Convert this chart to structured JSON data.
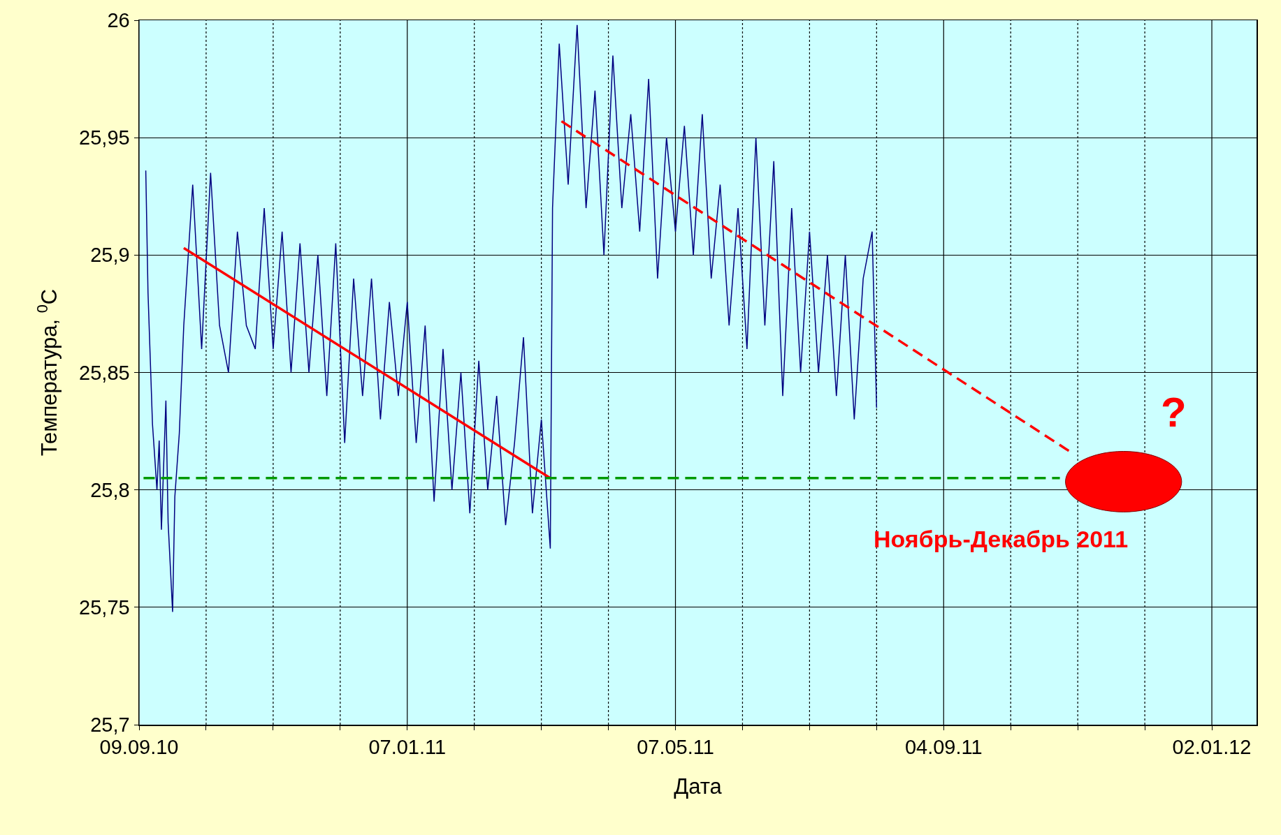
{
  "chart_data": {
    "type": "line",
    "xlabel": "Дата",
    "ylabel": "Температура, $^{0}$C",
    "grid": true,
    "marker": "none",
    "xlim": [
      "2010-09-09",
      "2012-01-22"
    ],
    "xticks": [
      {
        "value": "2010-09-09",
        "label": "09.09.10"
      },
      {
        "value": "2010-10-09",
        "label": null
      },
      {
        "value": "2010-11-08",
        "label": null
      },
      {
        "value": "2010-12-08",
        "label": null
      },
      {
        "value": "2011-01-07",
        "label": "07.01.11"
      },
      {
        "value": "2011-02-06",
        "label": null
      },
      {
        "value": "2011-03-08",
        "label": null
      },
      {
        "value": "2011-04-07",
        "label": null
      },
      {
        "value": "2011-05-07",
        "label": "07.05.11"
      },
      {
        "value": "2011-06-06",
        "label": null
      },
      {
        "value": "2011-07-06",
        "label": null
      },
      {
        "value": "2011-08-05",
        "label": null
      },
      {
        "value": "2011-09-04",
        "label": "04.09.11"
      },
      {
        "value": "2011-10-04",
        "label": null
      },
      {
        "value": "2011-11-03",
        "label": null
      },
      {
        "value": "2011-12-03",
        "label": null
      },
      {
        "value": "2012-01-02",
        "label": "02.01.12"
      }
    ],
    "ylim": [
      25.7,
      26
    ],
    "yticks": [
      {
        "value": 25.7,
        "label": "25,7"
      },
      {
        "value": 25.75,
        "label": "25,75"
      },
      {
        "value": 25.8,
        "label": "25,8"
      },
      {
        "value": 25.85,
        "label": "25,85"
      },
      {
        "value": 25.9,
        "label": "25,9"
      },
      {
        "value": 25.95,
        "label": "25,95"
      },
      26
    ],
    "annotations": [
      "?",
      "Ноябрь-Декабрь 2011"
    ],
    "series": [
      {
        "color": "#000080",
        "line_style": "solid",
        "x": [
          "2010-09-12",
          "2010-09-13",
          "2010-09-14",
          "2010-09-15",
          "2010-09-17",
          "2010-09-18",
          "2010-09-19",
          "2010-09-21",
          "2010-09-22",
          "2010-09-24",
          "2010-09-25",
          "2010-09-27",
          "2010-09-29",
          "2010-10-03",
          "2010-10-07",
          "2010-10-11",
          "2010-10-15",
          "2010-10-19",
          "2010-10-23",
          "2010-10-27",
          "2010-10-31",
          "2010-11-04",
          "2010-11-08",
          "2010-11-12",
          "2010-11-16",
          "2010-11-20",
          "2010-11-24",
          "2010-11-28",
          "2010-12-02",
          "2010-12-06",
          "2010-12-10",
          "2010-12-14",
          "2010-12-18",
          "2010-12-22",
          "2010-12-26",
          "2010-12-30",
          "2011-01-03",
          "2011-01-07",
          "2011-01-11",
          "2011-01-15",
          "2011-01-19",
          "2011-01-23",
          "2011-01-27",
          "2011-01-31",
          "2011-02-04",
          "2011-02-08",
          "2011-02-12",
          "2011-02-16",
          "2011-02-20",
          "2011-02-24",
          "2011-02-28",
          "2011-03-04",
          "2011-03-08",
          "2011-03-12",
          "2011-03-13",
          "2011-03-16",
          "2011-03-20",
          "2011-03-24",
          "2011-03-28",
          "2011-04-01",
          "2011-04-05",
          "2011-04-09",
          "2011-04-13",
          "2011-04-17",
          "2011-04-21",
          "2011-04-25",
          "2011-04-29",
          "2011-05-03",
          "2011-05-07",
          "2011-05-11",
          "2011-05-15",
          "2011-05-19",
          "2011-05-23",
          "2011-05-27",
          "2011-05-31",
          "2011-06-04",
          "2011-06-08",
          "2011-06-12",
          "2011-06-16",
          "2011-06-20",
          "2011-06-24",
          "2011-06-28",
          "2011-07-02",
          "2011-07-06",
          "2011-07-10",
          "2011-07-14",
          "2011-07-18",
          "2011-07-22",
          "2011-07-26",
          "2011-07-30",
          "2011-08-03",
          "2011-08-05"
        ],
        "values": [
          25.936,
          25.884,
          25.856,
          25.828,
          25.8,
          25.821,
          25.783,
          25.838,
          25.786,
          25.748,
          25.797,
          25.824,
          25.87,
          25.93,
          25.86,
          25.935,
          25.87,
          25.85,
          25.91,
          25.87,
          25.86,
          25.92,
          25.86,
          25.91,
          25.85,
          25.905,
          25.85,
          25.9,
          25.84,
          25.905,
          25.82,
          25.89,
          25.84,
          25.89,
          25.83,
          25.88,
          25.84,
          25.88,
          25.82,
          25.87,
          25.795,
          25.86,
          25.8,
          25.85,
          25.79,
          25.855,
          25.8,
          25.84,
          25.785,
          25.82,
          25.865,
          25.79,
          25.83,
          25.775,
          25.92,
          25.99,
          25.93,
          25.998,
          25.92,
          25.97,
          25.9,
          25.985,
          25.92,
          25.96,
          25.91,
          25.975,
          25.89,
          25.95,
          25.91,
          25.955,
          25.9,
          25.96,
          25.89,
          25.93,
          25.87,
          25.92,
          25.86,
          25.95,
          25.87,
          25.94,
          25.84,
          25.92,
          25.85,
          25.91,
          25.85,
          25.9,
          25.84,
          25.9,
          25.83,
          25.89,
          25.91,
          25.835
        ]
      },
      {
        "color": "#ff0000",
        "line_style": "solid",
        "x": [
          "2010-09-29",
          "2011-03-12"
        ],
        "values": [
          25.903,
          25.805
        ]
      },
      {
        "color": "#ff0000",
        "line_style": "dashed",
        "x": [
          "2011-03-17",
          "2011-10-31"
        ],
        "values": [
          25.957,
          25.816
        ]
      },
      {
        "color": "#009900",
        "line_style": "dashed",
        "x": [
          "2010-09-11",
          "2011-10-26"
        ],
        "values": [
          25.805,
          25.805
        ]
      }
    ]
  }
}
